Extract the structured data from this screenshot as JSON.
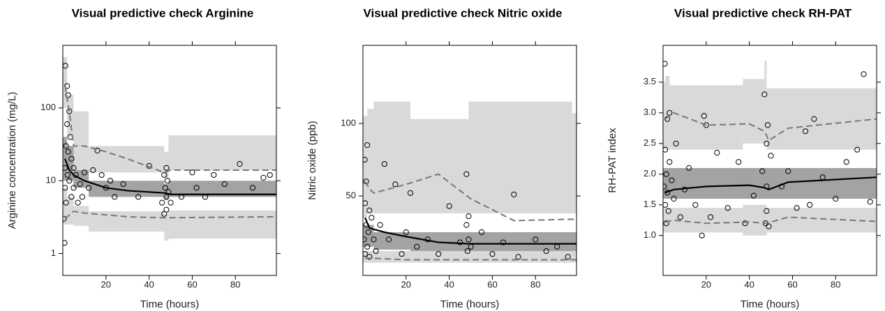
{
  "chart_data": [
    {
      "type": "vpc",
      "title": "Visual predictive check Arginine",
      "x_label": "Time (hours)",
      "y_label": "Arginine concentration (mg/L)",
      "log_y": true,
      "xlim": [
        0,
        99
      ],
      "xticks": [
        20,
        40,
        60,
        80
      ],
      "ylim": [
        0.5,
        725
      ],
      "yticks": [
        1,
        10,
        100
      ],
      "bands": [
        {
          "color": "#d9d9d9",
          "bins": [
            0,
            2,
            5,
            12,
            47,
            49,
            99
          ],
          "lower": [
            100,
            40,
            12,
            13,
            11,
            14
          ],
          "upper": [
            500,
            150,
            90,
            30,
            25,
            42
          ]
        },
        {
          "color": "#d9d9d9",
          "bins": [
            0,
            2,
            5,
            12,
            47,
            49,
            99
          ],
          "lower": [
            2.5,
            2.5,
            2.4,
            2,
            1.5,
            1.6
          ],
          "upper": [
            8,
            6,
            4.5,
            3.8,
            3.5,
            3.9
          ]
        },
        {
          "color": "#a3a3a3",
          "bins": [
            0,
            2,
            5,
            12,
            47,
            49,
            99
          ],
          "lower": [
            10,
            10,
            8,
            6,
            5.5,
            6
          ],
          "upper": [
            40,
            30,
            14,
            10,
            9,
            10
          ]
        }
      ],
      "lines": [
        {
          "color": "#000000",
          "dashed": false,
          "x": [
            1,
            3,
            5,
            10,
            20,
            30,
            47,
            50,
            60,
            99
          ],
          "values": [
            20,
            14,
            12,
            10,
            8,
            7.3,
            6.8,
            6.5,
            6.5,
            6.5
          ]
        },
        {
          "color": "#777777",
          "dashed": true,
          "x": [
            1,
            3,
            5,
            10,
            20,
            30,
            47,
            50,
            99
          ],
          "values": [
            200,
            90,
            30,
            30,
            25,
            20,
            13,
            14,
            14
          ]
        },
        {
          "color": "#777777",
          "dashed": true,
          "x": [
            1,
            5,
            10,
            20,
            30,
            47,
            99
          ],
          "values": [
            3,
            3.8,
            3.6,
            3.4,
            3.2,
            3.1,
            3.2
          ]
        }
      ],
      "points": {
        "color": "#000000",
        "x": [
          0.5,
          0.8,
          1,
          1,
          1.2,
          1.5,
          1.5,
          2,
          2,
          2.2,
          2.5,
          2.5,
          3,
          3,
          3.5,
          4,
          4,
          5,
          5,
          6,
          7,
          8,
          9,
          10,
          12,
          14,
          16,
          18,
          20,
          22,
          24,
          28,
          35,
          40,
          46,
          47,
          47,
          47.5,
          48,
          48,
          48,
          48.5,
          49,
          50,
          55,
          60,
          62,
          66,
          70,
          75,
          82,
          88,
          93,
          96
        ],
        "values": [
          3,
          1.4,
          8,
          15,
          380,
          5,
          30,
          200,
          60,
          12,
          150,
          25,
          90,
          10,
          40,
          20,
          6,
          15,
          8,
          12,
          5,
          9,
          6,
          13,
          8,
          14,
          26,
          12,
          8,
          10,
          6,
          9,
          6,
          16,
          5,
          3.5,
          12,
          8,
          6,
          4,
          15,
          10,
          7,
          5,
          6,
          13,
          8,
          6,
          12,
          9,
          17,
          8,
          11,
          12
        ]
      }
    },
    {
      "type": "vpc",
      "title": "Visual predictive check Nitric oxide",
      "x_label": "Time (hours)",
      "y_label": "Nitric oxide (ppb)",
      "log_y": false,
      "xlim": [
        0,
        99
      ],
      "xticks": [
        20,
        40,
        60,
        80
      ],
      "ylim": [
        -4.8,
        153.8
      ],
      "yticks": [
        50,
        100
      ],
      "bands": [
        {
          "color": "#d9d9d9",
          "bins": [
            0,
            2,
            5,
            22,
            49,
            97,
            99
          ],
          "lower": [
            35,
            38,
            38,
            38,
            38,
            38
          ],
          "upper": [
            105,
            110,
            115,
            103,
            115,
            107
          ]
        },
        {
          "color": "#d9d9d9",
          "bins": [
            0,
            99
          ],
          "lower": [
            4
          ],
          "upper": [
            12
          ]
        },
        {
          "color": "#a3a3a3",
          "bins": [
            0,
            5,
            22,
            99
          ],
          "lower": [
            15,
            13,
            12
          ],
          "upper": [
            30,
            25,
            25
          ]
        }
      ],
      "lines": [
        {
          "color": "#000000",
          "dashed": false,
          "x": [
            1,
            3,
            5,
            10,
            20,
            35,
            50,
            70,
            99
          ],
          "values": [
            35,
            28,
            27,
            25,
            22,
            18,
            17,
            17,
            17
          ]
        },
        {
          "color": "#777777",
          "dashed": true,
          "x": [
            1,
            3,
            5,
            20,
            35,
            50,
            70,
            99
          ],
          "values": [
            60,
            55,
            52,
            58,
            65,
            48,
            33,
            34
          ]
        },
        {
          "color": "#777777",
          "dashed": true,
          "x": [
            1,
            5,
            20,
            50,
            99
          ],
          "values": [
            7,
            7,
            6,
            6,
            6
          ]
        }
      ],
      "points": {
        "color": "#000000",
        "x": [
          0.5,
          0.8,
          1,
          1,
          1.5,
          1.5,
          2,
          2,
          2.5,
          3,
          3,
          4,
          5,
          6,
          8,
          10,
          12,
          15,
          18,
          20,
          22,
          25,
          30,
          35,
          40,
          45,
          48,
          48,
          48.5,
          49,
          49,
          50,
          55,
          60,
          65,
          70,
          72,
          80,
          85,
          90,
          95
        ],
        "values": [
          20,
          75,
          10,
          45,
          30,
          60,
          15,
          85,
          25,
          40,
          8,
          35,
          20,
          12,
          30,
          72,
          20,
          58,
          10,
          25,
          52,
          15,
          20,
          10,
          43,
          18,
          30,
          65,
          12,
          20,
          36,
          15,
          25,
          10,
          18,
          51,
          8,
          20,
          12,
          15,
          8
        ]
      }
    },
    {
      "type": "vpc",
      "title": "Visual predictive check RH-PAT",
      "x_label": "Time (hours)",
      "y_label": "RH-PAT index",
      "log_y": false,
      "xlim": [
        0,
        99
      ],
      "xticks": [
        20,
        40,
        60,
        80
      ],
      "ylim": [
        0.35,
        4.1
      ],
      "yticks": [
        {
          "value": 1,
          "label": "1.0"
        },
        {
          "value": 1.5,
          "label": "1.5"
        },
        {
          "value": 2,
          "label": "2.0"
        },
        {
          "value": 2.5,
          "label": "2.5"
        },
        {
          "value": 3,
          "label": "3.0"
        },
        {
          "value": 3.5,
          "label": "3.5"
        }
      ],
      "bands": [
        {
          "color": "#d9d9d9",
          "bins": [
            0,
            1,
            3,
            37,
            47,
            48,
            99
          ],
          "lower": [
            2.4,
            2.4,
            2.4,
            2.5,
            2.5,
            2.4
          ],
          "upper": [
            3.5,
            3.6,
            3.45,
            3.55,
            3.85,
            3.4
          ]
        },
        {
          "color": "#d9d9d9",
          "bins": [
            0,
            37,
            48,
            99
          ],
          "lower": [
            1.05,
            1,
            1.05
          ],
          "upper": [
            1.45,
            1.5,
            1.45
          ]
        },
        {
          "color": "#a3a3a3",
          "bins": [
            0,
            99
          ],
          "lower": [
            1.6
          ],
          "upper": [
            2.1
          ]
        }
      ],
      "lines": [
        {
          "color": "#000000",
          "dashed": false,
          "x": [
            1,
            5,
            20,
            40,
            47,
            49,
            58,
            99
          ],
          "values": [
            1.7,
            1.75,
            1.8,
            1.82,
            1.78,
            1.75,
            1.87,
            1.95
          ]
        },
        {
          "color": "#777777",
          "dashed": true,
          "x": [
            1,
            5,
            20,
            40,
            47,
            49,
            58,
            99
          ],
          "values": [
            2.9,
            3.0,
            2.8,
            2.82,
            2.7,
            2.55,
            2.75,
            2.9
          ]
        },
        {
          "color": "#777777",
          "dashed": true,
          "x": [
            1,
            5,
            20,
            40,
            48,
            58,
            99
          ],
          "values": [
            1.22,
            1.25,
            1.2,
            1.22,
            1.2,
            1.3,
            1.23
          ]
        }
      ],
      "points": {
        "color": "#000000",
        "x": [
          0.5,
          0.8,
          1,
          1,
          1.5,
          1.5,
          2,
          2,
          2.5,
          3,
          3,
          4,
          5,
          6,
          8,
          10,
          12,
          15,
          18,
          19,
          20,
          22,
          25,
          30,
          35,
          38,
          42,
          46,
          47,
          47.5,
          48,
          48,
          48,
          48.5,
          49,
          50,
          55,
          58,
          62,
          66,
          68,
          70,
          74,
          80,
          85,
          90,
          93,
          96
        ],
        "values": [
          1.8,
          3.8,
          1.5,
          2.4,
          1.2,
          2.0,
          1.7,
          2.9,
          1.4,
          2.2,
          3.0,
          1.9,
          1.6,
          2.5,
          1.3,
          1.75,
          2.1,
          1.5,
          1.0,
          2.95,
          2.8,
          1.3,
          2.35,
          1.45,
          2.2,
          1.2,
          1.65,
          2.05,
          3.3,
          1.2,
          2.5,
          1.8,
          1.4,
          2.8,
          1.15,
          2.3,
          1.8,
          2.05,
          1.45,
          2.7,
          1.5,
          2.9,
          1.95,
          1.6,
          2.2,
          2.4,
          3.63,
          1.55
        ]
      }
    }
  ]
}
